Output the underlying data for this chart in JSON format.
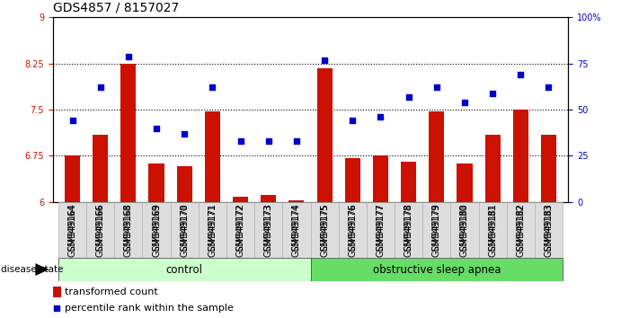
{
  "title": "GDS4857 / 8157027",
  "samples": [
    "GSM949164",
    "GSM949166",
    "GSM949168",
    "GSM949169",
    "GSM949170",
    "GSM949171",
    "GSM949172",
    "GSM949173",
    "GSM949174",
    "GSM949175",
    "GSM949176",
    "GSM949177",
    "GSM949178",
    "GSM949179",
    "GSM949180",
    "GSM949181",
    "GSM949182",
    "GSM949183"
  ],
  "bar_values": [
    6.75,
    7.1,
    8.25,
    6.62,
    6.58,
    7.47,
    6.08,
    6.12,
    6.03,
    8.18,
    6.72,
    6.75,
    6.65,
    7.47,
    6.62,
    7.1,
    7.5,
    7.1
  ],
  "dot_values": [
    44,
    62,
    79,
    40,
    37,
    62,
    33,
    33,
    33,
    77,
    44,
    46,
    57,
    62,
    54,
    59,
    69,
    62
  ],
  "bar_color": "#cc1100",
  "dot_color": "#0000cc",
  "ylim_left": [
    6,
    9
  ],
  "ylim_right": [
    0,
    100
  ],
  "yticks_left": [
    6,
    6.75,
    7.5,
    8.25,
    9
  ],
  "ytick_labels_left": [
    "6",
    "6.75",
    "7.5",
    "8.25",
    "9"
  ],
  "yticks_right": [
    0,
    25,
    50,
    75,
    100
  ],
  "ytick_labels_right": [
    "0",
    "25",
    "50",
    "75",
    "100%"
  ],
  "grid_values": [
    6.75,
    7.5,
    8.25
  ],
  "n_control": 9,
  "n_apnea": 9,
  "control_label": "control",
  "apnea_label": "obstructive sleep apnea",
  "disease_state_label": "disease state",
  "legend_bar_label": "transformed count",
  "legend_dot_label": "percentile rank within the sample",
  "control_color": "#ccffcc",
  "apnea_color": "#66dd66",
  "tick_fontsize": 7.0,
  "title_fontsize": 10
}
